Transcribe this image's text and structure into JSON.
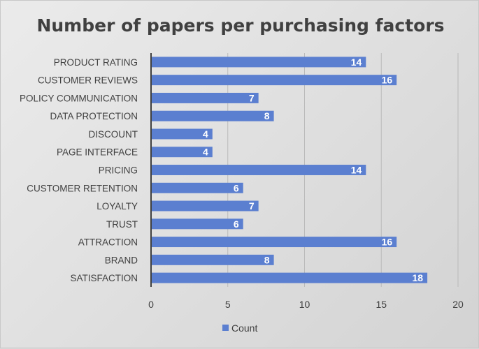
{
  "chart_data": {
    "type": "bar",
    "orientation": "horizontal",
    "title": "Number of papers per purchasing factors",
    "categories": [
      "PRODUCT RATING",
      "CUSTOMER REVIEWS",
      "POLICY COMMUNICATION",
      "DATA PROTECTION",
      "DISCOUNT",
      "PAGE INTERFACE",
      "PRICING",
      "CUSTOMER RETENTION",
      "LOYALTY",
      "TRUST",
      "ATTRACTION",
      "BRAND",
      "SATISFACTION"
    ],
    "series": [
      {
        "name": "Count",
        "values": [
          14,
          16,
          7,
          8,
          4,
          4,
          14,
          6,
          7,
          6,
          16,
          8,
          18
        ]
      }
    ],
    "xlim": [
      0,
      20
    ],
    "xticks": [
      0,
      5,
      10,
      15,
      20
    ],
    "grid": true,
    "legend_position": "bottom",
    "bar_color": "#5b7fd0"
  }
}
